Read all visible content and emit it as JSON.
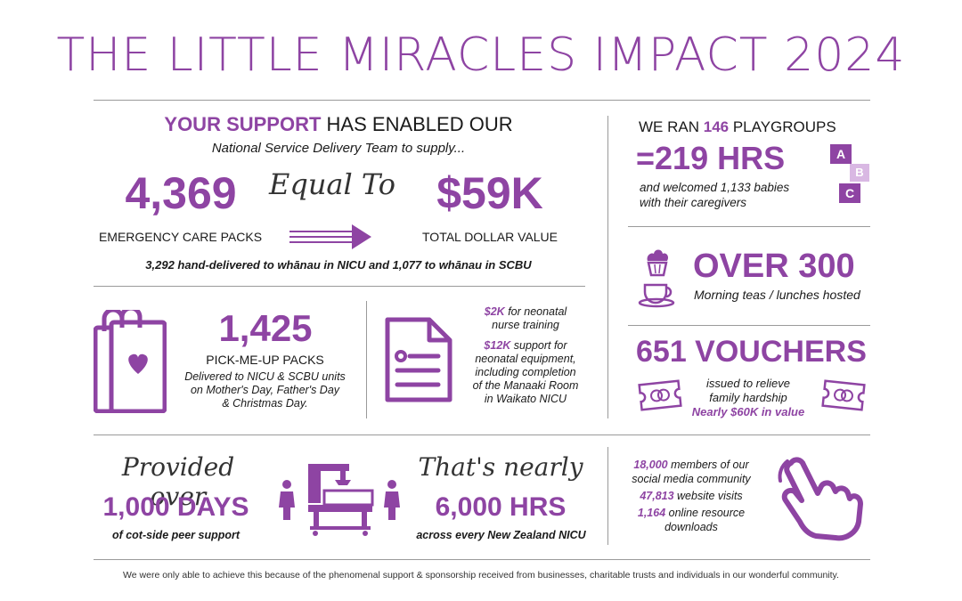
{
  "title": "THE LITTLE MIRACLES IMPACT 2024",
  "support": {
    "heading_bold": "YOUR SUPPORT",
    "heading_rest": "HAS ENABLED OUR",
    "subheading": "National Service Delivery Team to supply...",
    "packs_value": "4,369",
    "packs_label": "EMERGENCY CARE PACKS",
    "equal_to": "Equal To",
    "dollar_value": "$59K",
    "dollar_label": "TOTAL DOLLAR VALUE",
    "delivered_note": "3,292 hand-delivered to whānau in NICU and 1,077 to whānau in SCBU"
  },
  "pickme": {
    "value": "1,425",
    "label": "PICK-ME-UP PACKS",
    "desc_line1": "Delivered to NICU & SCBU units",
    "desc_line2": "on Mother's Day, Father's Day",
    "desc_line3": "& Christmas Day."
  },
  "training": {
    "amount1": "$2K",
    "text1a": "for neonatal",
    "text1b": "nurse training",
    "amount2": "$12K",
    "text2a": "support for",
    "text2b": "neonatal equipment,",
    "text2c": "including completion",
    "text2d": "of the Manaaki Room",
    "text2e": "in Waikato NICU"
  },
  "playgroups": {
    "prefix": "WE RAN",
    "count": "146",
    "suffix": "PLAYGROUPS",
    "hours": "=219 HRS",
    "desc_line1": "and welcomed 1,133 babies",
    "desc_line2": "with their caregivers",
    "blocks": [
      "A",
      "B",
      "C"
    ]
  },
  "teas": {
    "value": "OVER 300",
    "label": "Morning teas / lunches hosted"
  },
  "vouchers": {
    "value": "651 VOUCHERS",
    "desc_line1": "issued to relieve",
    "desc_line2": "family hardship",
    "value_note": "Nearly $60K in value"
  },
  "peer": {
    "script": "Provided over",
    "value": "1,000 DAYS",
    "label": "of cot-side peer support"
  },
  "nicu": {
    "script": "That's nearly",
    "value": "6,000 HRS",
    "label": "across every New Zealand NICU"
  },
  "online": {
    "social_num": "18,000",
    "social_text1": "members of our",
    "social_text2": "social media community",
    "visits_num": "47,813",
    "visits_text": "website visits",
    "downloads_num": "1,164",
    "downloads_text1": "online resource",
    "downloads_text2": "downloads"
  },
  "footer": "We were only able to achieve this because of the phenomenal support & sponsorship received from businesses, charitable trusts and individuals in our wonderful community.",
  "colors": {
    "accent": "#8e44a3",
    "line": "#9a9a9a",
    "block_light": "#d9b8e3"
  },
  "icons": [
    "arrow-right-icon",
    "shopping-bag-heart-icon",
    "document-icon",
    "abc-blocks-icon",
    "cupcake-icon",
    "teacup-icon",
    "voucher-icon",
    "person-icon",
    "incubator-icon",
    "pointing-hand-icon"
  ]
}
